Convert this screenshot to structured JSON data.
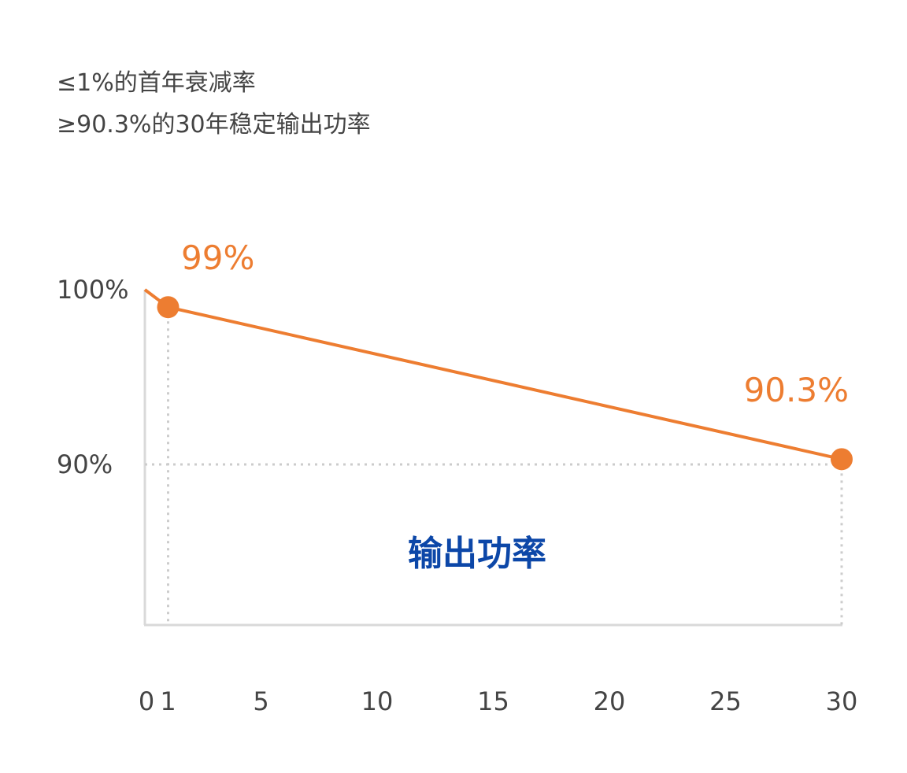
{
  "headlines": [
    "≤1%的首年衰减率",
    "≥90.3%的30年稳定输出功率"
  ],
  "colors": {
    "series": "#ED7D31",
    "area_label": "#0C47A8",
    "axis": "#D9D9D9",
    "guide": "#CCCCCC",
    "text": "#444444"
  },
  "chart_data": {
    "type": "line",
    "x": [
      0,
      1,
      30
    ],
    "y": [
      100,
      99,
      90.3
    ],
    "markers": [
      {
        "x": 1,
        "y": 99,
        "label": "99%"
      },
      {
        "x": 30,
        "y": 90.3,
        "label": "90.3%"
      }
    ],
    "x_ticks": [
      0,
      1,
      5,
      10,
      15,
      20,
      25,
      30
    ],
    "y_ticks": [
      {
        "value": 100,
        "label": "100%"
      },
      {
        "value": 90,
        "label": "90%"
      }
    ],
    "area_label": "输出功率",
    "xlim": [
      0,
      30
    ],
    "grid": false
  }
}
